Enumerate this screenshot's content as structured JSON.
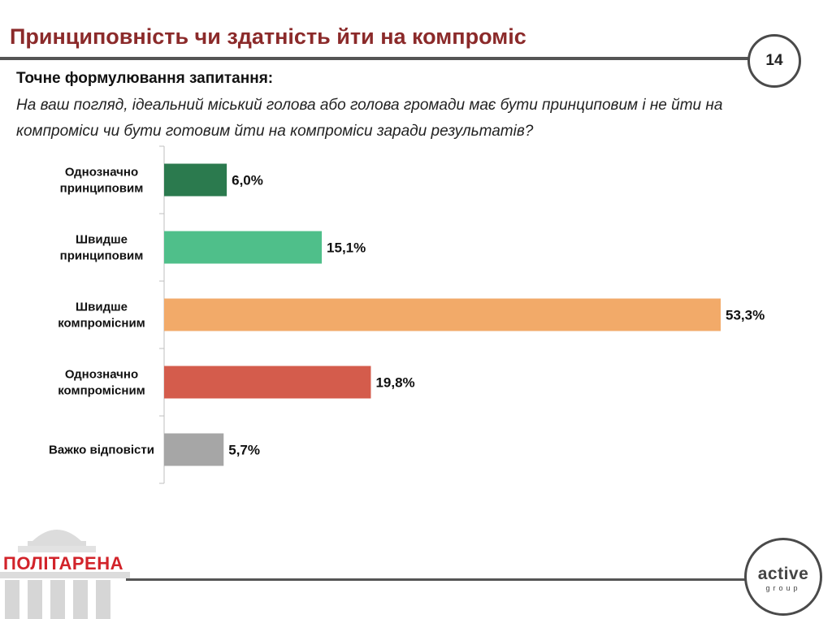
{
  "header": {
    "title": "Принциповність чи здатність йти на компроміс",
    "page_number": "14"
  },
  "question": {
    "heading": "Точне формулювання запитання:",
    "text": "На ваш погляд, ідеальний міський голова або голова громади має бути принциповим і не йти на компроміси чи бути готовим йти на компроміси заради результатів?"
  },
  "chart_data": {
    "type": "bar",
    "orientation": "horizontal",
    "categories": [
      [
        "Однозначно",
        "принциповим"
      ],
      [
        "Швидше",
        "принциповим"
      ],
      [
        "Швидше",
        "компромісним"
      ],
      [
        "Однозначно",
        "компромісним"
      ],
      [
        "Важко відповісти"
      ]
    ],
    "values": [
      6.0,
      15.1,
      53.3,
      19.8,
      5.7
    ],
    "value_labels": [
      "6,0%",
      "15,1%",
      "53,3%",
      "19,8%",
      "5,7%"
    ],
    "colors": [
      "#2b7a4e",
      "#4fbf8a",
      "#f2aa69",
      "#d45c4c",
      "#a6a6a6"
    ],
    "xlim": [
      0,
      60
    ],
    "unit": "%"
  },
  "footer": {
    "left_logo_text": "ПОЛІТАРЕНА",
    "right_logo_main": "active",
    "right_logo_sub": "group"
  }
}
